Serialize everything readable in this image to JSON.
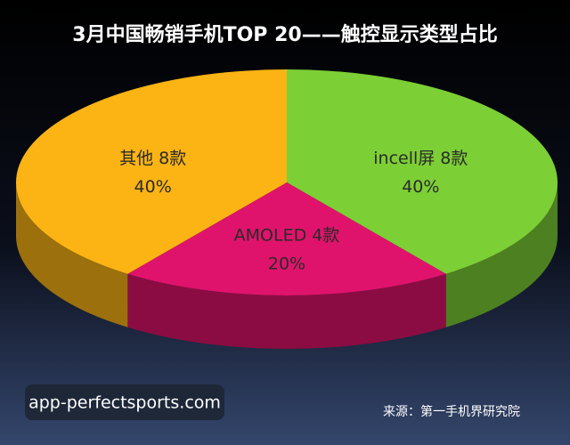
{
  "chart_data": {
    "type": "pie3d",
    "title": "3月中国畅销手机TOP 20——触控显示类型占比",
    "categories": [
      "incell屏 8款",
      "AMOLED 4款",
      "其他 8款"
    ],
    "values": [
      40,
      20,
      40
    ],
    "value_labels": [
      "40%",
      "20%",
      "40%"
    ],
    "colors": [
      "#7ccf35",
      "#e0136c",
      "#fbb414"
    ],
    "source": "来源：第一手机界研究院"
  },
  "watermark": "app-perfectsports.com"
}
